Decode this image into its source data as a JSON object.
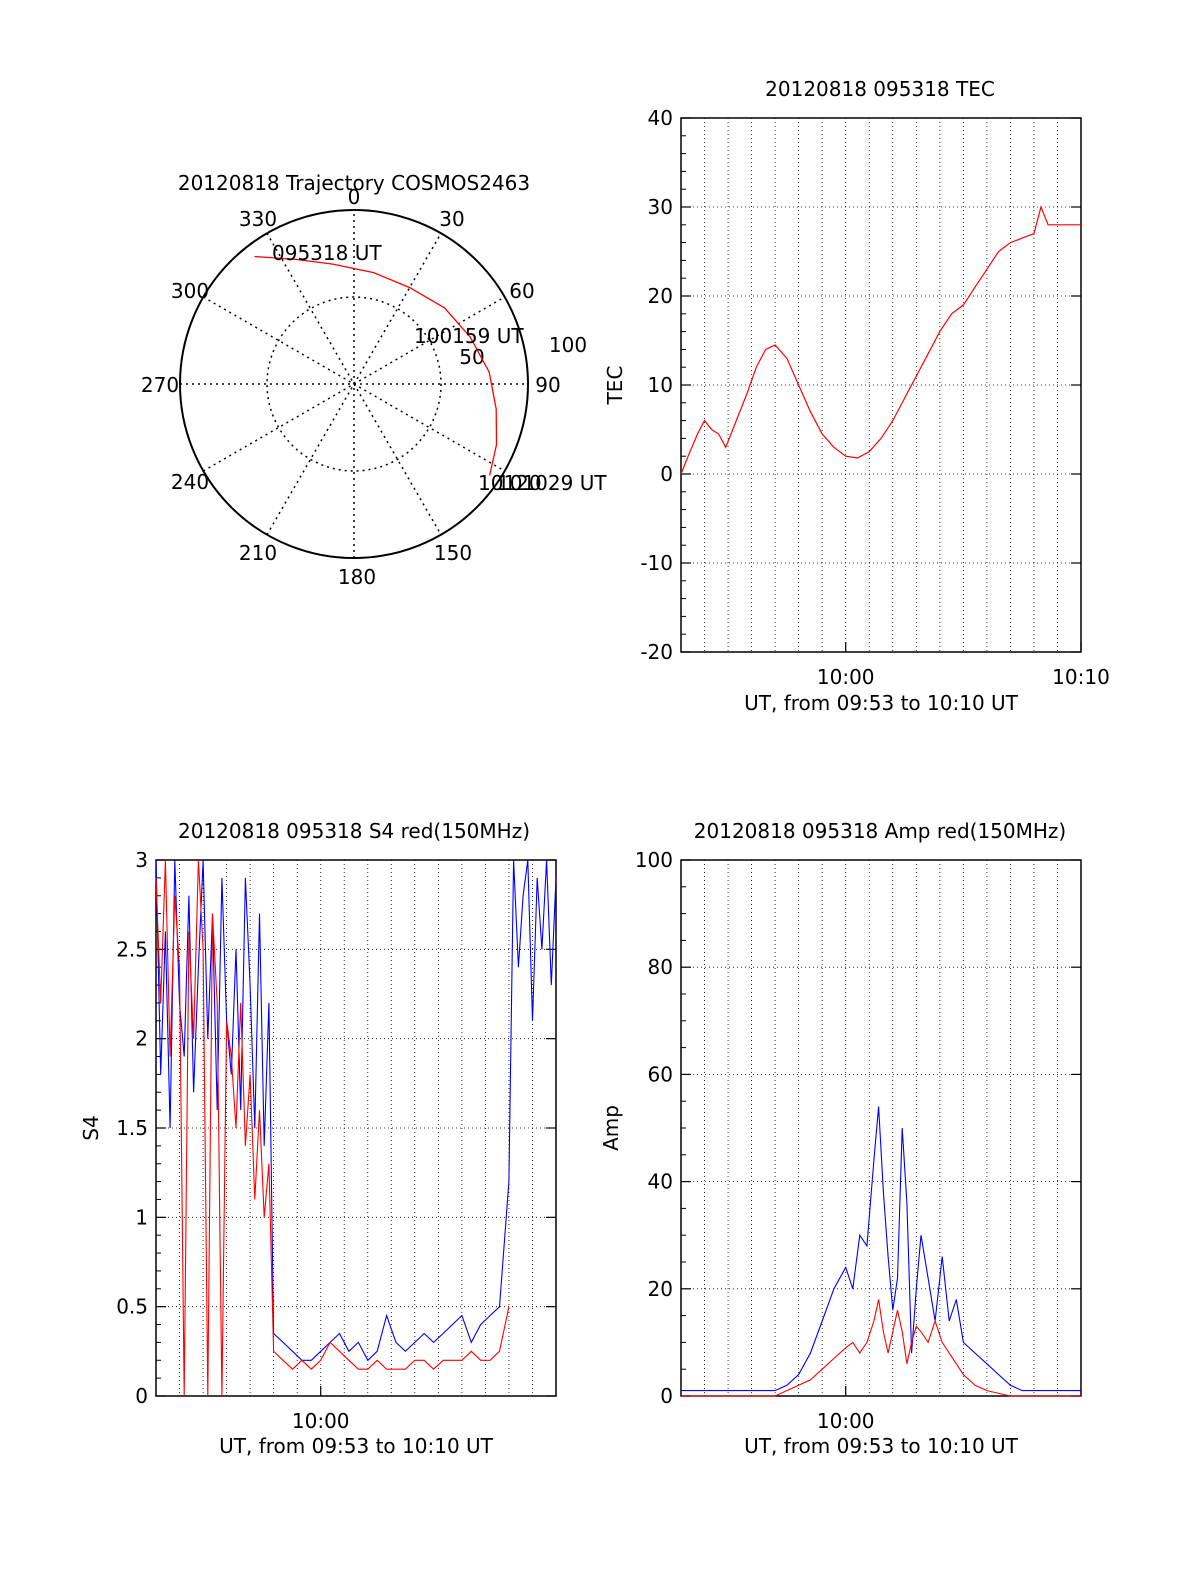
{
  "chart_data": [
    {
      "type": "polar",
      "title": "20120818 Trajectory COSMOS2463",
      "azimuth_labels": [
        "0",
        "30",
        "60",
        "90",
        "150",
        "180",
        "210",
        "240",
        "270",
        "300",
        "330"
      ],
      "radial_labels": [
        "50",
        "100"
      ],
      "elevation_range": [
        0,
        100
      ],
      "labels": {
        "start": "095318 UT",
        "mid": "100159 UT",
        "end": "101029 UT",
        "end_overlap": "10120"
      },
      "trajectory": [
        {
          "az": 322,
          "r": 93
        },
        {
          "az": 335,
          "r": 79
        },
        {
          "az": 350,
          "r": 70
        },
        {
          "az": 10,
          "r": 65
        },
        {
          "az": 30,
          "r": 64
        },
        {
          "az": 50,
          "r": 68
        },
        {
          "az": 68,
          "r": 72
        },
        {
          "az": 85,
          "r": 78
        },
        {
          "az": 100,
          "r": 83
        },
        {
          "az": 113,
          "r": 89
        },
        {
          "az": 124,
          "r": 94
        }
      ],
      "line_color": "#ff0000"
    },
    {
      "type": "line",
      "title": "20120818 095318 TEC",
      "xlabel": "UT, from 09:53 to 10:10 UT",
      "ylabel": "TEC",
      "xlim": [
        0,
        17
      ],
      "ylim": [
        -20,
        40
      ],
      "yticks": [
        "-20",
        "-10",
        "0",
        "10",
        "20",
        "30",
        "40"
      ],
      "xtick_labels": [
        {
          "x": 7,
          "label": "10:00"
        },
        {
          "x": 17,
          "label": "10:10"
        }
      ],
      "grid": true,
      "series": [
        {
          "color": "#ff0000",
          "x": [
            0,
            0.3,
            0.7,
            1.0,
            1.3,
            1.6,
            1.9,
            2.2,
            2.5,
            2.8,
            3.2,
            3.6,
            4.0,
            4.5,
            5.0,
            5.5,
            6.0,
            6.5,
            7.0,
            7.5,
            8.0,
            8.5,
            9.0,
            9.5,
            10.0,
            10.5,
            11.0,
            11.5,
            12.0,
            12.5,
            13.0,
            13.5,
            14.0,
            14.5,
            15.0,
            15.3,
            15.6,
            16.0,
            16.3,
            16.6,
            16.9,
            17.0
          ],
          "y": [
            0,
            2,
            4.5,
            6,
            5,
            4.5,
            3,
            5,
            7,
            9,
            12,
            14,
            14.5,
            13,
            10,
            7,
            4.5,
            3,
            2,
            1.8,
            2.5,
            4,
            6,
            8.5,
            11,
            13.5,
            16,
            18,
            19,
            21,
            23,
            25,
            26,
            26.5,
            27,
            30,
            28,
            28,
            28,
            28,
            28,
            28
          ]
        }
      ]
    },
    {
      "type": "line",
      "title": "20120818 095318 S4 red(150MHz)",
      "xlabel": "UT, from 09:53 to 10:10 UT",
      "ylabel": "S4",
      "xlim": [
        0,
        17
      ],
      "ylim": [
        0,
        3
      ],
      "yticks": [
        "0",
        "0.5",
        "1",
        "1.5",
        "2",
        "2.5",
        "3"
      ],
      "xtick_labels": [
        {
          "x": 7,
          "label": "10:00"
        }
      ],
      "grid": true,
      "series": [
        {
          "color": "#0000ff",
          "x": [
            0,
            0.2,
            0.4,
            0.6,
            0.8,
            1.0,
            1.2,
            1.4,
            1.6,
            1.8,
            2.0,
            2.2,
            2.4,
            2.6,
            2.8,
            3.0,
            3.2,
            3.4,
            3.6,
            3.8,
            4.0,
            4.2,
            4.4,
            4.6,
            4.8,
            5.0,
            5.4,
            5.8,
            6.2,
            6.6,
            7.0,
            7.4,
            7.8,
            8.2,
            8.6,
            9.0,
            9.4,
            9.8,
            10.2,
            10.6,
            11.0,
            11.4,
            11.8,
            12.2,
            12.6,
            13.0,
            13.4,
            13.8,
            14.2,
            14.6,
            15.0,
            15.2,
            15.4,
            15.6,
            15.8,
            16.0,
            16.2,
            16.4,
            16.6,
            16.8,
            17.0
          ],
          "y": [
            3,
            1.8,
            2.6,
            1.5,
            3,
            2.2,
            1.9,
            2.8,
            1.7,
            2.4,
            3,
            2.0,
            2.7,
            1.6,
            2.9,
            2.1,
            1.8,
            2.5,
            1.6,
            2.9,
            2.3,
            1.5,
            2.7,
            1.4,
            2.2,
            0.35,
            0.3,
            0.25,
            0.2,
            0.2,
            0.25,
            0.3,
            0.35,
            0.25,
            0.3,
            0.2,
            0.25,
            0.45,
            0.3,
            0.25,
            0.3,
            0.35,
            0.3,
            0.35,
            0.4,
            0.45,
            0.3,
            0.4,
            0.45,
            0.5,
            1.2,
            3,
            2.4,
            2.8,
            3,
            2.1,
            2.9,
            2.5,
            3,
            2.3,
            2.9
          ]
        },
        {
          "color": "#ff0000",
          "x": [
            0,
            0.2,
            0.4,
            0.6,
            0.8,
            1.0,
            1.2,
            1.4,
            1.6,
            1.8,
            2.0,
            2.2,
            2.4,
            2.6,
            2.8,
            3.0,
            3.2,
            3.4,
            3.6,
            3.8,
            4.0,
            4.2,
            4.4,
            4.6,
            4.8,
            5.0,
            5.4,
            5.8,
            6.2,
            6.6,
            7.0,
            7.4,
            7.8,
            8.2,
            8.6,
            9.0,
            9.4,
            9.8,
            10.2,
            10.6,
            11.0,
            11.4,
            11.8,
            12.2,
            12.6,
            13.0,
            13.4,
            13.8,
            14.2,
            14.6,
            15.0
          ],
          "y": [
            2.9,
            2.2,
            3,
            1.9,
            2.8,
            2.4,
            0,
            2.6,
            2.0,
            3,
            2.5,
            0,
            2.7,
            2.2,
            0,
            2.1,
            1.9,
            1.5,
            2.2,
            1.4,
            1.8,
            1.1,
            1.6,
            1.0,
            1.3,
            0.25,
            0.2,
            0.15,
            0.2,
            0.15,
            0.2,
            0.3,
            0.25,
            0.2,
            0.15,
            0.15,
            0.2,
            0.15,
            0.15,
            0.15,
            0.2,
            0.2,
            0.15,
            0.2,
            0.2,
            0.2,
            0.25,
            0.2,
            0.2,
            0.25,
            0.5
          ]
        }
      ]
    },
    {
      "type": "line",
      "title": "20120818 095318 Amp red(150MHz)",
      "xlabel": "UT, from 09:53 to 10:10 UT",
      "ylabel": "Amp",
      "xlim": [
        0,
        17
      ],
      "ylim": [
        0,
        100
      ],
      "yticks": [
        "0",
        "20",
        "40",
        "60",
        "80",
        "100"
      ],
      "xtick_labels": [
        {
          "x": 7,
          "label": "10:00"
        }
      ],
      "grid": true,
      "series": [
        {
          "color": "#0000ff",
          "x": [
            0,
            1,
            2,
            3,
            3.5,
            4,
            4.5,
            5,
            5.5,
            6,
            6.5,
            7,
            7.3,
            7.6,
            7.9,
            8.2,
            8.4,
            8.6,
            8.8,
            9.0,
            9.2,
            9.4,
            9.6,
            9.8,
            10.0,
            10.2,
            10.5,
            10.8,
            11.1,
            11.4,
            11.7,
            12.0,
            12.5,
            13.0,
            13.5,
            14.0,
            14.5,
            15.0,
            16.0,
            17.0
          ],
          "y": [
            1,
            1,
            1,
            1,
            1,
            1,
            2,
            4,
            8,
            14,
            20,
            24,
            20,
            30,
            28,
            44,
            54,
            38,
            26,
            16,
            22,
            50,
            36,
            8,
            20,
            30,
            22,
            14,
            26,
            14,
            18,
            10,
            8,
            6,
            4,
            2,
            1,
            1,
            1,
            1
          ]
        },
        {
          "color": "#ff0000",
          "x": [
            0,
            2,
            4,
            4.5,
            5,
            5.5,
            6,
            6.5,
            7,
            7.3,
            7.6,
            7.9,
            8.2,
            8.4,
            8.6,
            8.8,
            9.0,
            9.2,
            9.4,
            9.6,
            9.8,
            10.0,
            10.2,
            10.5,
            10.8,
            11.1,
            11.4,
            11.7,
            12.0,
            12.5,
            13.0,
            14.0,
            17.0
          ],
          "y": [
            0,
            0,
            0,
            1,
            2,
            3,
            5,
            7,
            9,
            10,
            8,
            10,
            14,
            18,
            12,
            8,
            12,
            16,
            12,
            6,
            10,
            13,
            12,
            10,
            14,
            10,
            8,
            6,
            4,
            2,
            1,
            0,
            0
          ]
        }
      ]
    }
  ]
}
